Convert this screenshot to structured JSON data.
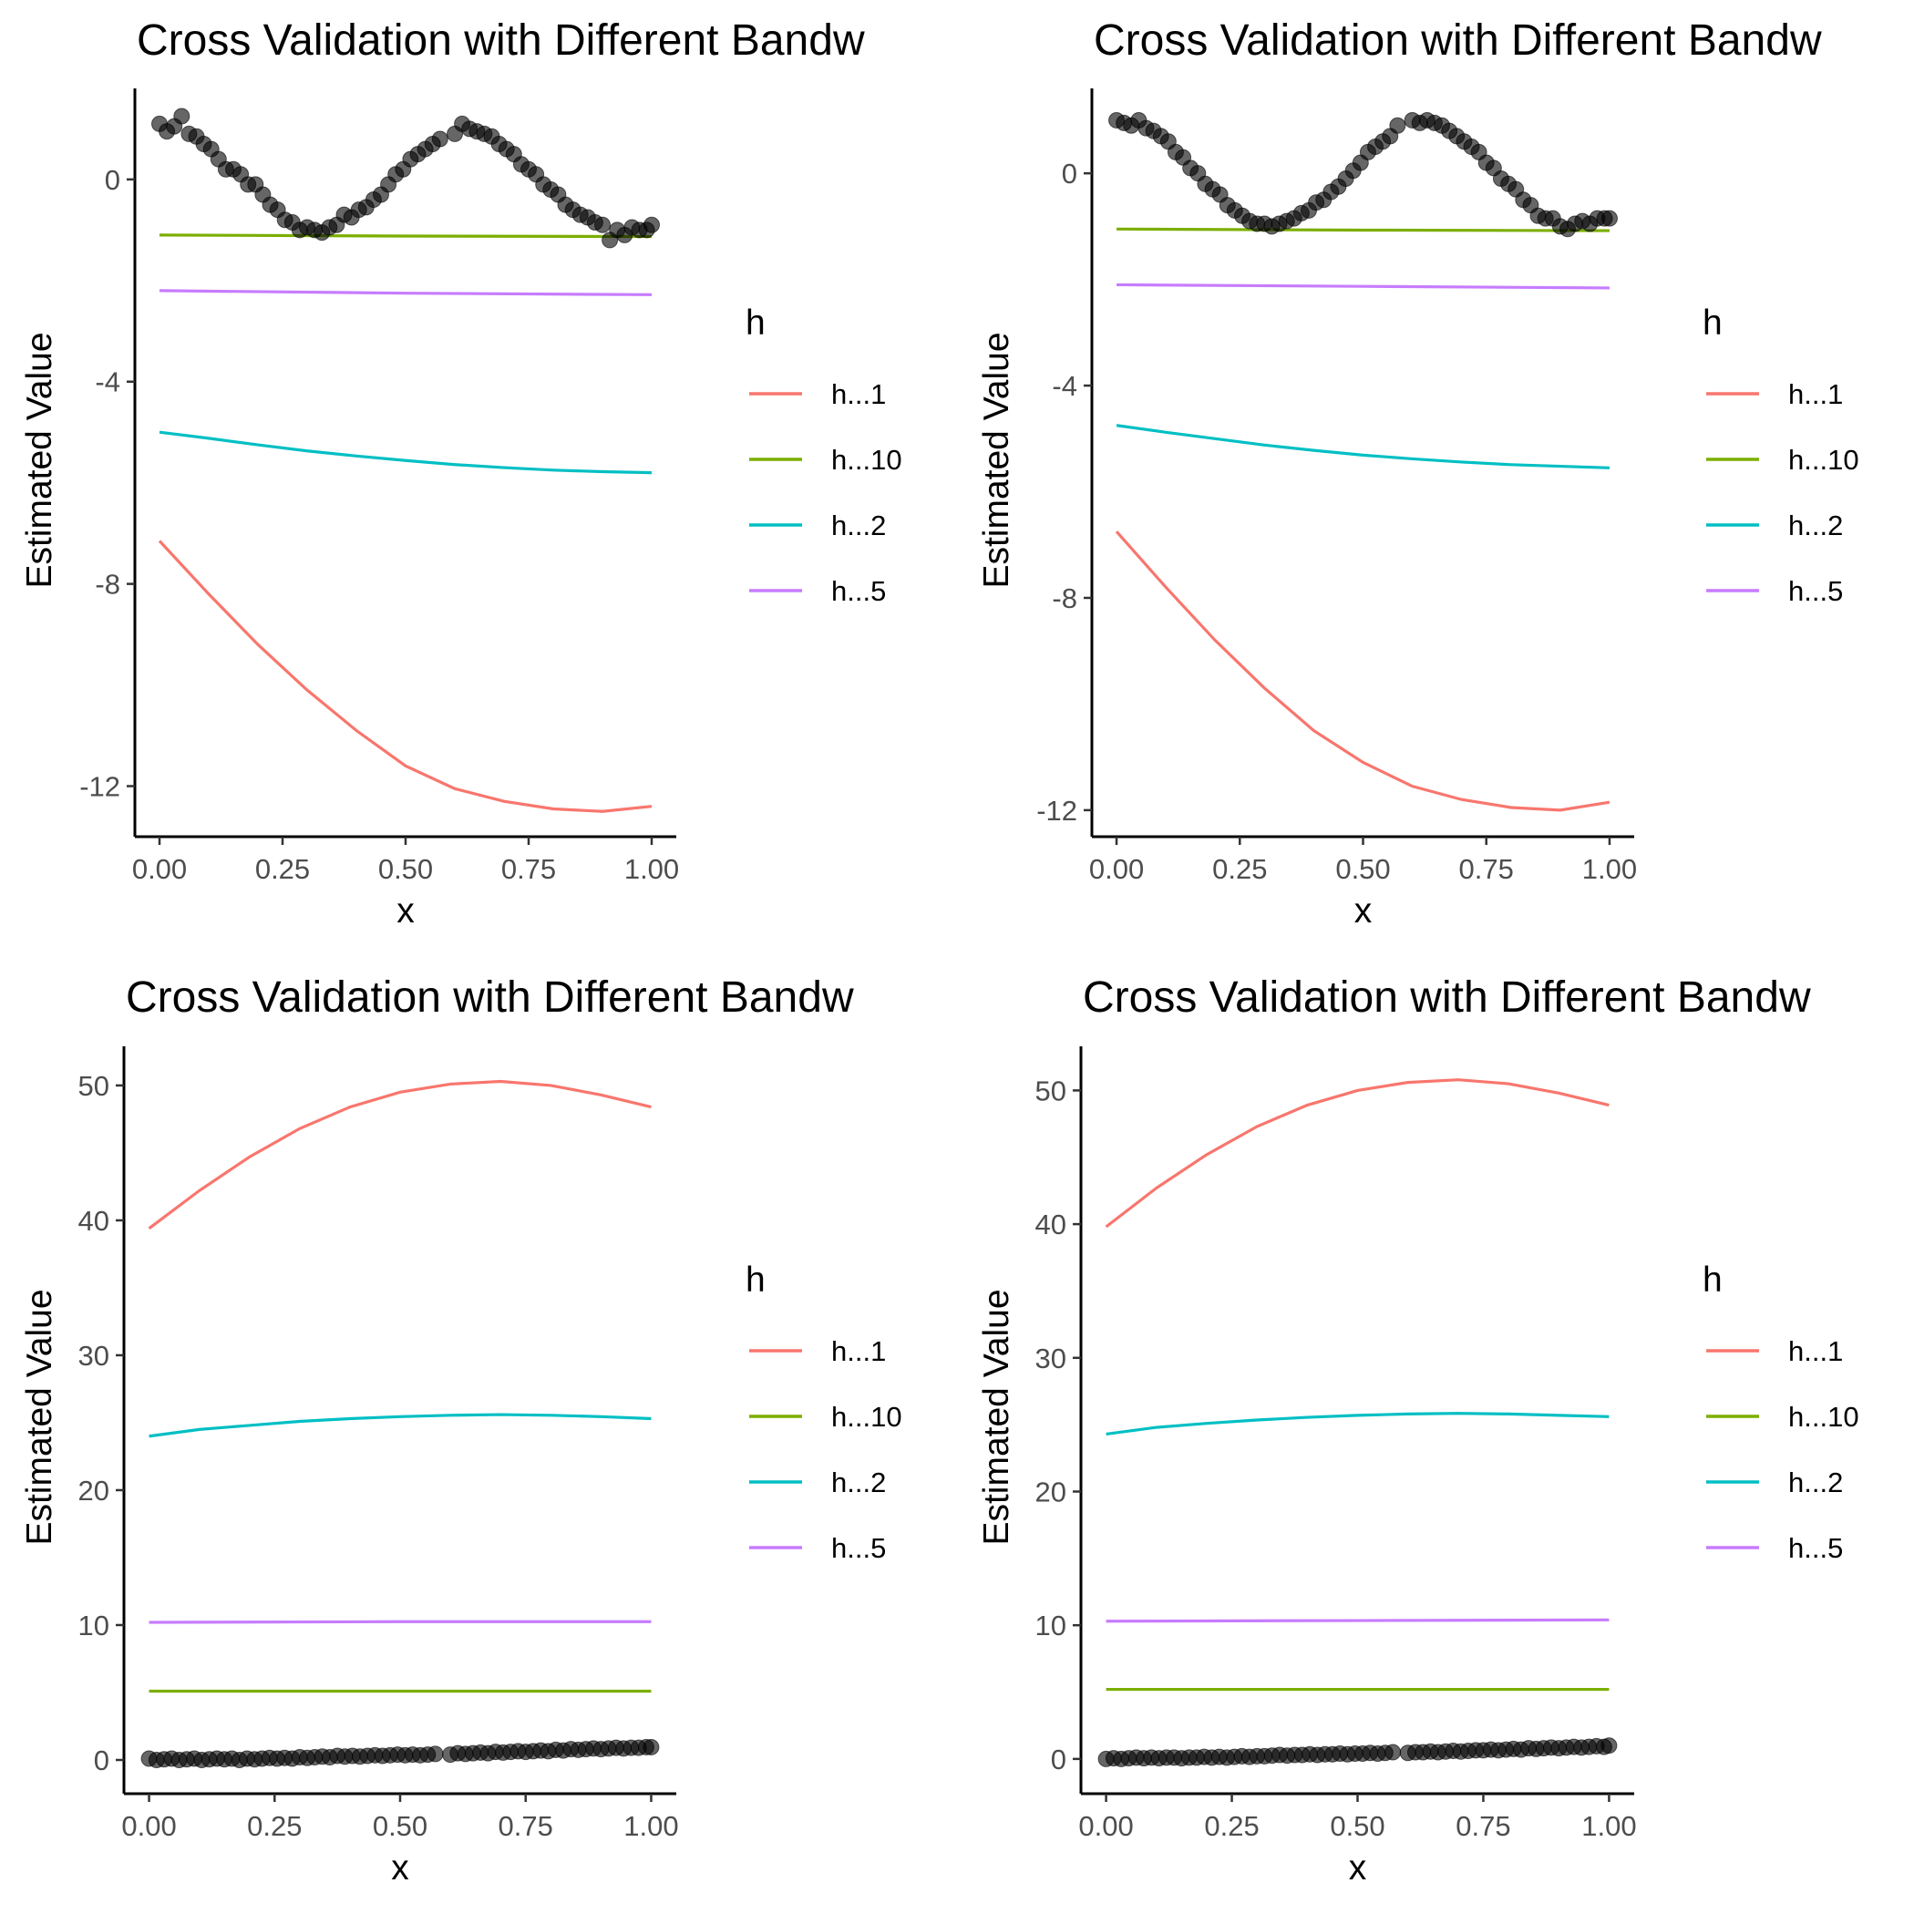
{
  "chart_data": [
    {
      "type": "line",
      "title": "Cross Validation with Different Bandw",
      "xlabel": "x",
      "ylabel": "Estimated Value",
      "xlim": [
        -0.05,
        1.05
      ],
      "ylim": [
        -13.0,
        1.8
      ],
      "xticks": [
        0.0,
        0.25,
        0.5,
        0.75,
        1.0
      ],
      "xtick_labels": [
        "0.00",
        "0.25",
        "0.50",
        "0.75",
        "1.00"
      ],
      "yticks": [
        0,
        -4,
        -8,
        -12
      ],
      "ytick_labels": [
        "0",
        "-4",
        "-8",
        "-12"
      ],
      "grid": false,
      "legend": {
        "title": "h",
        "position": "right",
        "entries": [
          "h...1",
          "h...10",
          "h...2",
          "h...5"
        ]
      },
      "series": [
        {
          "name": "h...1",
          "color": "#F8766D",
          "x": [
            0,
            0.1,
            0.2,
            0.3,
            0.4,
            0.5,
            0.6,
            0.7,
            0.8,
            0.9,
            1.0
          ],
          "values": [
            -7.15,
            -8.2,
            -9.2,
            -10.1,
            -10.9,
            -11.6,
            -12.05,
            -12.3,
            -12.45,
            -12.5,
            -12.4
          ]
        },
        {
          "name": "h...10",
          "color": "#7CAE00",
          "x": [
            0,
            0.5,
            1.0
          ],
          "values": [
            -1.1,
            -1.12,
            -1.13
          ]
        },
        {
          "name": "h...2",
          "color": "#00BFC4",
          "x": [
            0,
            0.1,
            0.2,
            0.3,
            0.4,
            0.5,
            0.6,
            0.7,
            0.8,
            0.9,
            1.0
          ],
          "values": [
            -5.0,
            -5.12,
            -5.25,
            -5.37,
            -5.47,
            -5.56,
            -5.64,
            -5.7,
            -5.75,
            -5.78,
            -5.8
          ]
        },
        {
          "name": "h...5",
          "color": "#C77CFF",
          "x": [
            0,
            0.5,
            1.0
          ],
          "values": [
            -2.2,
            -2.25,
            -2.28
          ]
        }
      ],
      "points": {
        "color": "#000000",
        "x": [
          0,
          0.015,
          0.03,
          0.045,
          0.06,
          0.075,
          0.09,
          0.105,
          0.12,
          0.135,
          0.15,
          0.165,
          0.18,
          0.195,
          0.21,
          0.225,
          0.24,
          0.255,
          0.27,
          0.285,
          0.3,
          0.315,
          0.33,
          0.345,
          0.36,
          0.375,
          0.39,
          0.405,
          0.42,
          0.435,
          0.45,
          0.465,
          0.48,
          0.495,
          0.51,
          0.525,
          0.54,
          0.555,
          0.57,
          0.6,
          0.615,
          0.63,
          0.645,
          0.66,
          0.675,
          0.69,
          0.705,
          0.72,
          0.735,
          0.75,
          0.765,
          0.78,
          0.795,
          0.81,
          0.825,
          0.84,
          0.855,
          0.87,
          0.885,
          0.9,
          0.915,
          0.93,
          0.945,
          0.96,
          0.975,
          0.99,
          1.0
        ],
        "values": [
          1.1,
          0.95,
          1.05,
          1.25,
          0.9,
          0.85,
          0.7,
          0.6,
          0.4,
          0.2,
          0.2,
          0.1,
          -0.1,
          -0.1,
          -0.3,
          -0.5,
          -0.6,
          -0.8,
          -0.85,
          -1.0,
          -0.95,
          -1.0,
          -1.05,
          -0.95,
          -0.9,
          -0.7,
          -0.75,
          -0.6,
          -0.55,
          -0.4,
          -0.3,
          -0.1,
          0.1,
          0.2,
          0.4,
          0.5,
          0.6,
          0.7,
          0.8,
          0.9,
          1.1,
          1.0,
          0.95,
          0.9,
          0.85,
          0.7,
          0.6,
          0.5,
          0.3,
          0.2,
          0.1,
          -0.1,
          -0.2,
          -0.3,
          -0.5,
          -0.6,
          -0.7,
          -0.75,
          -0.85,
          -0.9,
          -1.2,
          -1.0,
          -1.1,
          -0.95,
          -1.0,
          -1.0,
          -0.9
        ]
      }
    },
    {
      "type": "line",
      "title": "Cross Validation with Different Bandw",
      "xlabel": "x",
      "ylabel": "Estimated Value",
      "xlim": [
        -0.05,
        1.05
      ],
      "ylim": [
        -12.5,
        1.6
      ],
      "xticks": [
        0.0,
        0.25,
        0.5,
        0.75,
        1.0
      ],
      "xtick_labels": [
        "0.00",
        "0.25",
        "0.50",
        "0.75",
        "1.00"
      ],
      "yticks": [
        0,
        -4,
        -8,
        -12
      ],
      "ytick_labels": [
        "0",
        "-4",
        "-8",
        "-12"
      ],
      "grid": false,
      "legend": {
        "title": "h",
        "position": "right",
        "entries": [
          "h...1",
          "h...10",
          "h...2",
          "h...5"
        ]
      },
      "series": [
        {
          "name": "h...1",
          "color": "#F8766D",
          "x": [
            0,
            0.1,
            0.2,
            0.3,
            0.4,
            0.5,
            0.6,
            0.7,
            0.8,
            0.9,
            1.0
          ],
          "values": [
            -6.75,
            -7.8,
            -8.8,
            -9.7,
            -10.5,
            -11.1,
            -11.55,
            -11.8,
            -11.95,
            -12.0,
            -11.85
          ]
        },
        {
          "name": "h...10",
          "color": "#7CAE00",
          "x": [
            0,
            0.5,
            1.0
          ],
          "values": [
            -1.05,
            -1.07,
            -1.08
          ]
        },
        {
          "name": "h...2",
          "color": "#00BFC4",
          "x": [
            0,
            0.1,
            0.2,
            0.3,
            0.4,
            0.5,
            0.6,
            0.7,
            0.8,
            0.9,
            1.0
          ],
          "values": [
            -4.75,
            -4.88,
            -5.0,
            -5.12,
            -5.22,
            -5.31,
            -5.38,
            -5.44,
            -5.49,
            -5.52,
            -5.55
          ]
        },
        {
          "name": "h...5",
          "color": "#C77CFF",
          "x": [
            0,
            0.5,
            1.0
          ],
          "values": [
            -2.1,
            -2.13,
            -2.16
          ]
        }
      ],
      "points": {
        "color": "#000000",
        "x": [
          0,
          0.015,
          0.03,
          0.045,
          0.06,
          0.075,
          0.09,
          0.105,
          0.12,
          0.135,
          0.15,
          0.165,
          0.18,
          0.195,
          0.21,
          0.225,
          0.24,
          0.255,
          0.27,
          0.285,
          0.3,
          0.315,
          0.33,
          0.345,
          0.36,
          0.375,
          0.39,
          0.405,
          0.42,
          0.435,
          0.45,
          0.465,
          0.48,
          0.495,
          0.51,
          0.525,
          0.54,
          0.555,
          0.57,
          0.6,
          0.615,
          0.63,
          0.645,
          0.66,
          0.675,
          0.69,
          0.705,
          0.72,
          0.735,
          0.75,
          0.765,
          0.78,
          0.795,
          0.81,
          0.825,
          0.84,
          0.855,
          0.87,
          0.885,
          0.9,
          0.915,
          0.93,
          0.945,
          0.96,
          0.975,
          0.99,
          1.0
        ],
        "values": [
          1.0,
          0.95,
          0.9,
          1.0,
          0.85,
          0.8,
          0.7,
          0.6,
          0.4,
          0.3,
          0.1,
          0.0,
          -0.2,
          -0.3,
          -0.4,
          -0.6,
          -0.7,
          -0.8,
          -0.9,
          -0.95,
          -0.95,
          -1.0,
          -0.95,
          -0.9,
          -0.85,
          -0.75,
          -0.7,
          -0.55,
          -0.5,
          -0.35,
          -0.25,
          -0.1,
          0.05,
          0.2,
          0.4,
          0.5,
          0.6,
          0.7,
          0.9,
          1.0,
          0.95,
          1.0,
          0.95,
          0.9,
          0.8,
          0.7,
          0.6,
          0.5,
          0.4,
          0.2,
          0.1,
          -0.1,
          -0.2,
          -0.3,
          -0.5,
          -0.6,
          -0.8,
          -0.85,
          -0.85,
          -1.0,
          -1.05,
          -0.95,
          -0.9,
          -0.95,
          -0.85,
          -0.85,
          -0.85
        ]
      }
    },
    {
      "type": "line",
      "title": "Cross Validation with Different Bandw",
      "xlabel": "x",
      "ylabel": "Estimated Value",
      "xlim": [
        -0.05,
        1.05
      ],
      "ylim": [
        -2.5,
        52.9
      ],
      "xticks": [
        0.0,
        0.25,
        0.5,
        0.75,
        1.0
      ],
      "xtick_labels": [
        "0.00",
        "0.25",
        "0.50",
        "0.75",
        "1.00"
      ],
      "yticks": [
        0,
        10,
        20,
        30,
        40,
        50
      ],
      "ytick_labels": [
        "0",
        "10",
        "20",
        "30",
        "40",
        "50"
      ],
      "grid": false,
      "legend": {
        "title": "h",
        "position": "right",
        "entries": [
          "h...1",
          "h...10",
          "h...2",
          "h...5"
        ]
      },
      "series": [
        {
          "name": "h...1",
          "color": "#F8766D",
          "x": [
            0,
            0.1,
            0.2,
            0.3,
            0.4,
            0.5,
            0.6,
            0.7,
            0.8,
            0.9,
            1.0
          ],
          "values": [
            39.4,
            42.2,
            44.7,
            46.8,
            48.4,
            49.5,
            50.1,
            50.3,
            50.0,
            49.3,
            48.4
          ]
        },
        {
          "name": "h...10",
          "color": "#7CAE00",
          "x": [
            0,
            0.5,
            1.0
          ],
          "values": [
            5.1,
            5.1,
            5.1
          ]
        },
        {
          "name": "h...2",
          "color": "#00BFC4",
          "x": [
            0,
            0.1,
            0.2,
            0.3,
            0.4,
            0.5,
            0.6,
            0.7,
            0.8,
            0.9,
            1.0
          ],
          "values": [
            24.0,
            24.5,
            24.8,
            25.1,
            25.3,
            25.45,
            25.55,
            25.6,
            25.55,
            25.45,
            25.3
          ]
        },
        {
          "name": "h...5",
          "color": "#C77CFF",
          "x": [
            0,
            0.5,
            1.0
          ],
          "values": [
            10.2,
            10.25,
            10.25
          ]
        }
      ],
      "points": {
        "color": "#000000",
        "x": [
          0,
          0.015,
          0.03,
          0.045,
          0.06,
          0.075,
          0.09,
          0.105,
          0.12,
          0.135,
          0.15,
          0.165,
          0.18,
          0.195,
          0.21,
          0.225,
          0.24,
          0.255,
          0.27,
          0.285,
          0.3,
          0.315,
          0.33,
          0.345,
          0.36,
          0.375,
          0.39,
          0.405,
          0.42,
          0.435,
          0.45,
          0.465,
          0.48,
          0.495,
          0.51,
          0.525,
          0.54,
          0.555,
          0.57,
          0.6,
          0.615,
          0.63,
          0.645,
          0.66,
          0.675,
          0.69,
          0.705,
          0.72,
          0.735,
          0.75,
          0.765,
          0.78,
          0.795,
          0.81,
          0.825,
          0.84,
          0.855,
          0.87,
          0.885,
          0.9,
          0.915,
          0.93,
          0.945,
          0.96,
          0.975,
          0.99,
          1.0
        ],
        "values": [
          0.1,
          0.0,
          0.05,
          0.1,
          0.0,
          0.05,
          0.1,
          0.0,
          0.05,
          0.1,
          0.05,
          0.1,
          0.0,
          0.1,
          0.05,
          0.1,
          0.15,
          0.1,
          0.15,
          0.1,
          0.2,
          0.15,
          0.2,
          0.25,
          0.2,
          0.3,
          0.25,
          0.3,
          0.25,
          0.3,
          0.35,
          0.3,
          0.35,
          0.4,
          0.35,
          0.4,
          0.35,
          0.4,
          0.45,
          0.4,
          0.5,
          0.45,
          0.5,
          0.55,
          0.5,
          0.6,
          0.55,
          0.6,
          0.65,
          0.6,
          0.65,
          0.7,
          0.65,
          0.75,
          0.7,
          0.8,
          0.75,
          0.8,
          0.85,
          0.8,
          0.85,
          0.9,
          0.85,
          0.9,
          0.9,
          0.95,
          0.95
        ]
      }
    },
    {
      "type": "line",
      "title": "Cross Validation with Different Bandw",
      "xlabel": "x",
      "ylabel": "Estimated Value",
      "xlim": [
        -0.05,
        1.05
      ],
      "ylim": [
        -2.6,
        53.3
      ],
      "xticks": [
        0.0,
        0.25,
        0.5,
        0.75,
        1.0
      ],
      "xtick_labels": [
        "0.00",
        "0.25",
        "0.50",
        "0.75",
        "1.00"
      ],
      "yticks": [
        0,
        10,
        20,
        30,
        40,
        50
      ],
      "ytick_labels": [
        "0",
        "10",
        "20",
        "30",
        "40",
        "50"
      ],
      "grid": false,
      "legend": {
        "title": "h",
        "position": "right",
        "entries": [
          "h...1",
          "h...10",
          "h...2",
          "h...5"
        ]
      },
      "series": [
        {
          "name": "h...1",
          "color": "#F8766D",
          "x": [
            0,
            0.1,
            0.2,
            0.3,
            0.4,
            0.5,
            0.6,
            0.7,
            0.8,
            0.9,
            1.0
          ],
          "values": [
            39.8,
            42.7,
            45.2,
            47.3,
            48.9,
            50.0,
            50.6,
            50.8,
            50.5,
            49.8,
            48.9
          ]
        },
        {
          "name": "h...10",
          "color": "#7CAE00",
          "x": [
            0,
            0.5,
            1.0
          ],
          "values": [
            5.2,
            5.2,
            5.2
          ]
        },
        {
          "name": "h...2",
          "color": "#00BFC4",
          "x": [
            0,
            0.1,
            0.2,
            0.3,
            0.4,
            0.5,
            0.6,
            0.7,
            0.8,
            0.9,
            1.0
          ],
          "values": [
            24.3,
            24.8,
            25.1,
            25.35,
            25.55,
            25.7,
            25.8,
            25.85,
            25.8,
            25.7,
            25.6
          ]
        },
        {
          "name": "h...5",
          "color": "#C77CFF",
          "x": [
            0,
            0.5,
            1.0
          ],
          "values": [
            10.3,
            10.35,
            10.4
          ]
        }
      ],
      "points": {
        "color": "#000000",
        "x": [
          0,
          0.015,
          0.03,
          0.045,
          0.06,
          0.075,
          0.09,
          0.105,
          0.12,
          0.135,
          0.15,
          0.165,
          0.18,
          0.195,
          0.21,
          0.225,
          0.24,
          0.255,
          0.27,
          0.285,
          0.3,
          0.315,
          0.33,
          0.345,
          0.36,
          0.375,
          0.39,
          0.405,
          0.42,
          0.435,
          0.45,
          0.465,
          0.48,
          0.495,
          0.51,
          0.525,
          0.54,
          0.555,
          0.57,
          0.6,
          0.615,
          0.63,
          0.645,
          0.66,
          0.675,
          0.69,
          0.705,
          0.72,
          0.735,
          0.75,
          0.765,
          0.78,
          0.795,
          0.81,
          0.825,
          0.84,
          0.855,
          0.87,
          0.885,
          0.9,
          0.915,
          0.93,
          0.945,
          0.96,
          0.975,
          0.99,
          1.0
        ],
        "values": [
          0.0,
          0.05,
          0.0,
          0.05,
          0.1,
          0.05,
          0.1,
          0.05,
          0.1,
          0.1,
          0.05,
          0.1,
          0.1,
          0.15,
          0.1,
          0.15,
          0.1,
          0.15,
          0.2,
          0.15,
          0.2,
          0.2,
          0.25,
          0.3,
          0.25,
          0.3,
          0.3,
          0.35,
          0.3,
          0.35,
          0.35,
          0.4,
          0.35,
          0.4,
          0.4,
          0.45,
          0.4,
          0.45,
          0.5,
          0.45,
          0.5,
          0.5,
          0.55,
          0.5,
          0.55,
          0.6,
          0.55,
          0.6,
          0.65,
          0.65,
          0.7,
          0.65,
          0.7,
          0.75,
          0.7,
          0.8,
          0.75,
          0.8,
          0.85,
          0.8,
          0.85,
          0.9,
          0.85,
          0.9,
          0.95,
          0.9,
          1.0
        ]
      }
    }
  ]
}
